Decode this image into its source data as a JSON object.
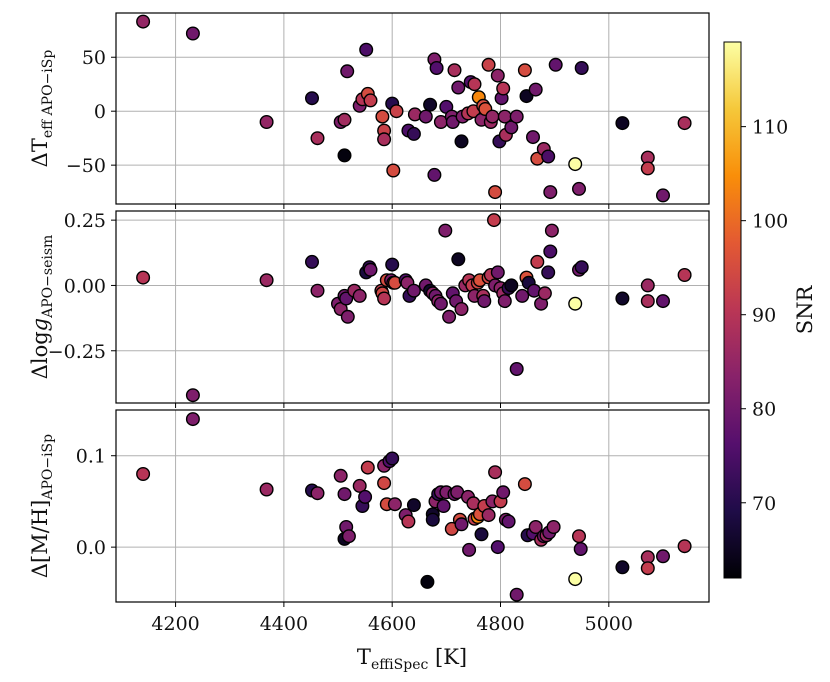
{
  "chart_data": {
    "type": "scatter",
    "xlabel": "T_effiSpec [K]",
    "xlim": [
      4090,
      5185
    ],
    "xticks": [
      4200,
      4400,
      4600,
      4800,
      5000
    ],
    "colorbar": {
      "label": "SNR",
      "range": [
        62,
        119
      ],
      "ticks": [
        70,
        80,
        90,
        100,
        110
      ],
      "colormap": "inferno"
    },
    "panels": [
      {
        "ylabel": "ΔT_eff APO−iSp",
        "ylim": [
          -86,
          91
        ],
        "yticks": [
          -50,
          0,
          50
        ],
        "points": [
          [
            4140,
            83,
            85
          ],
          [
            4232,
            72,
            80
          ],
          [
            4368,
            -10,
            85
          ],
          [
            4452,
            12,
            70
          ],
          [
            4462,
            -25,
            88
          ],
          [
            4505,
            -10,
            82
          ],
          [
            4512,
            -8,
            87
          ],
          [
            4512,
            -41,
            63
          ],
          [
            4517,
            37,
            80
          ],
          [
            4540,
            5,
            82
          ],
          [
            4545,
            11,
            90
          ],
          [
            4555,
            16,
            95
          ],
          [
            4552,
            57,
            75
          ],
          [
            4560,
            10,
            92
          ],
          [
            4582,
            -5,
            95
          ],
          [
            4585,
            -18,
            93
          ],
          [
            4585,
            -26,
            88
          ],
          [
            4600,
            7,
            70
          ],
          [
            4602,
            -55,
            95
          ],
          [
            4608,
            0,
            93
          ],
          [
            4630,
            -18,
            75
          ],
          [
            4640,
            -21,
            72
          ],
          [
            4642,
            -3,
            86
          ],
          [
            4662,
            -5,
            80
          ],
          [
            4670,
            6,
            66
          ],
          [
            4678,
            48,
            82
          ],
          [
            4678,
            -59,
            78
          ],
          [
            4682,
            40,
            76
          ],
          [
            4690,
            -10,
            84
          ],
          [
            4700,
            4,
            76
          ],
          [
            4710,
            -5,
            82
          ],
          [
            4712,
            -10,
            80
          ],
          [
            4715,
            38,
            88
          ],
          [
            4722,
            22,
            80
          ],
          [
            4728,
            -28,
            65
          ],
          [
            4730,
            -5,
            82
          ],
          [
            4740,
            -2,
            90
          ],
          [
            4745,
            27,
            76
          ],
          [
            4750,
            0,
            92
          ],
          [
            4752,
            25,
            90
          ],
          [
            4760,
            13,
            104
          ],
          [
            4765,
            -8,
            84
          ],
          [
            4768,
            5,
            95
          ],
          [
            4772,
            2,
            96
          ],
          [
            4778,
            43,
            93
          ],
          [
            4782,
            -10,
            86
          ],
          [
            4785,
            -5,
            85
          ],
          [
            4790,
            -75,
            95
          ],
          [
            4795,
            33,
            84
          ],
          [
            4798,
            -28,
            72
          ],
          [
            4802,
            12,
            78
          ],
          [
            4805,
            21,
            90
          ],
          [
            4808,
            -5,
            84
          ],
          [
            4810,
            -22,
            88
          ],
          [
            4820,
            -15,
            80
          ],
          [
            4830,
            -5,
            82
          ],
          [
            4845,
            38,
            95
          ],
          [
            4848,
            14,
            65
          ],
          [
            4865,
            20,
            80
          ],
          [
            4860,
            -24,
            80
          ],
          [
            4868,
            -44,
            95
          ],
          [
            4880,
            -35,
            86
          ],
          [
            4888,
            -42,
            75
          ],
          [
            4892,
            -75,
            82
          ],
          [
            4902,
            43,
            78
          ],
          [
            4938,
            -49,
            119
          ],
          [
            4945,
            -72,
            82
          ],
          [
            4950,
            40,
            72
          ],
          [
            5025,
            -11,
            65
          ],
          [
            5072,
            -43,
            88
          ],
          [
            5072,
            -53,
            92
          ],
          [
            5100,
            -78,
            80
          ],
          [
            5140,
            -11,
            88
          ]
        ]
      },
      {
        "ylabel": "Δlog g APO−seism",
        "ylim": [
          -0.45,
          0.285
        ],
        "yticks": [
          -0.25,
          0.0,
          0.25
        ],
        "points": [
          [
            4140,
            0.03,
            90
          ],
          [
            4232,
            -0.42,
            82
          ],
          [
            4368,
            0.02,
            86
          ],
          [
            4452,
            0.09,
            72
          ],
          [
            4462,
            -0.02,
            84
          ],
          [
            4500,
            -0.07,
            82
          ],
          [
            4505,
            -0.09,
            84
          ],
          [
            4512,
            -0.04,
            80
          ],
          [
            4515,
            -0.05,
            78
          ],
          [
            4518,
            -0.12,
            82
          ],
          [
            4530,
            -0.02,
            86
          ],
          [
            4540,
            -0.04,
            84
          ],
          [
            4552,
            0.05,
            68
          ],
          [
            4558,
            0.07,
            72
          ],
          [
            4560,
            0.06,
            80
          ],
          [
            4580,
            -0.02,
            92
          ],
          [
            4582,
            -0.03,
            94
          ],
          [
            4585,
            -0.05,
            90
          ],
          [
            4590,
            0.02,
            95
          ],
          [
            4598,
            0.02,
            82
          ],
          [
            4600,
            0.08,
            70
          ],
          [
            4602,
            0.01,
            92
          ],
          [
            4605,
            0.01,
            95
          ],
          [
            4625,
            0.02,
            76
          ],
          [
            4628,
            0.01,
            84
          ],
          [
            4632,
            -0.04,
            72
          ],
          [
            4640,
            -0.02,
            80
          ],
          [
            4662,
            0.0,
            80
          ],
          [
            4670,
            -0.02,
            66
          ],
          [
            4675,
            -0.03,
            84
          ],
          [
            4680,
            -0.04,
            80
          ],
          [
            4685,
            -0.06,
            84
          ],
          [
            4690,
            -0.07,
            80
          ],
          [
            4698,
            0.21,
            82
          ],
          [
            4705,
            -0.12,
            82
          ],
          [
            4712,
            -0.03,
            78
          ],
          [
            4718,
            -0.06,
            80
          ],
          [
            4722,
            0.1,
            65
          ],
          [
            4728,
            -0.09,
            84
          ],
          [
            4735,
            0.0,
            86
          ],
          [
            4742,
            0.02,
            90
          ],
          [
            4748,
            0.0,
            92
          ],
          [
            4752,
            -0.04,
            84
          ],
          [
            4758,
            0.01,
            94
          ],
          [
            4762,
            0.02,
            96
          ],
          [
            4768,
            -0.04,
            88
          ],
          [
            4770,
            -0.06,
            80
          ],
          [
            4778,
            0.03,
            94
          ],
          [
            4782,
            0.04,
            90
          ],
          [
            4788,
            0.25,
            92
          ],
          [
            4790,
            0.0,
            82
          ],
          [
            4795,
            0.05,
            80
          ],
          [
            4800,
            -0.01,
            84
          ],
          [
            4805,
            -0.03,
            86
          ],
          [
            4808,
            -0.06,
            82
          ],
          [
            4815,
            -0.01,
            72
          ],
          [
            4820,
            0.0,
            65
          ],
          [
            4830,
            -0.32,
            78
          ],
          [
            4840,
            -0.04,
            80
          ],
          [
            4848,
            0.03,
            96
          ],
          [
            4852,
            0.01,
            68
          ],
          [
            4862,
            -0.02,
            78
          ],
          [
            4868,
            0.09,
            92
          ],
          [
            4875,
            -0.07,
            82
          ],
          [
            4882,
            -0.03,
            86
          ],
          [
            4888,
            0.05,
            72
          ],
          [
            4892,
            0.13,
            75
          ],
          [
            4895,
            0.21,
            84
          ],
          [
            4938,
            -0.07,
            119
          ],
          [
            4945,
            0.06,
            80
          ],
          [
            4950,
            0.07,
            72
          ],
          [
            5025,
            -0.05,
            66
          ],
          [
            5072,
            -0.06,
            88
          ],
          [
            5072,
            0.0,
            86
          ],
          [
            5100,
            -0.06,
            78
          ],
          [
            5140,
            0.04,
            90
          ]
        ]
      },
      {
        "ylabel": "Δ[M/H] APO−iSp",
        "ylim": [
          -0.06,
          0.15
        ],
        "yticks": [
          0.0,
          0.1
        ],
        "points": [
          [
            4140,
            0.08,
            90
          ],
          [
            4232,
            0.14,
            82
          ],
          [
            4368,
            0.063,
            86
          ],
          [
            4452,
            0.062,
            70
          ],
          [
            4462,
            0.059,
            84
          ],
          [
            4505,
            0.078,
            84
          ],
          [
            4512,
            0.058,
            80
          ],
          [
            4512,
            0.009,
            65
          ],
          [
            4515,
            0.022,
            80
          ],
          [
            4520,
            0.012,
            82
          ],
          [
            4540,
            0.067,
            86
          ],
          [
            4545,
            0.045,
            72
          ],
          [
            4550,
            0.055,
            76
          ],
          [
            4555,
            0.087,
            92
          ],
          [
            4585,
            0.089,
            84
          ],
          [
            4585,
            0.07,
            94
          ],
          [
            4590,
            0.047,
            95
          ],
          [
            4595,
            0.094,
            76
          ],
          [
            4600,
            0.097,
            72
          ],
          [
            4605,
            0.047,
            84
          ],
          [
            4625,
            0.035,
            82
          ],
          [
            4630,
            0.028,
            90
          ],
          [
            4640,
            0.046,
            66
          ],
          [
            4665,
            -0.038,
            63
          ],
          [
            4675,
            0.036,
            66
          ],
          [
            4675,
            0.03,
            68
          ],
          [
            4680,
            0.05,
            84
          ],
          [
            4685,
            0.058,
            72
          ],
          [
            4690,
            0.06,
            80
          ],
          [
            4695,
            0.045,
            78
          ],
          [
            4700,
            0.06,
            82
          ],
          [
            4710,
            0.02,
            94
          ],
          [
            4715,
            0.058,
            80
          ],
          [
            4720,
            0.06,
            82
          ],
          [
            4725,
            0.03,
            95
          ],
          [
            4728,
            0.025,
            80
          ],
          [
            4740,
            0.055,
            84
          ],
          [
            4742,
            -0.003,
            80
          ],
          [
            4750,
            0.048,
            88
          ],
          [
            4752,
            0.031,
            92
          ],
          [
            4758,
            0.033,
            104
          ],
          [
            4762,
            0.036,
            96
          ],
          [
            4765,
            0.014,
            68
          ],
          [
            4770,
            0.045,
            92
          ],
          [
            4778,
            0.035,
            86
          ],
          [
            4785,
            0.05,
            84
          ],
          [
            4790,
            0.082,
            88
          ],
          [
            4795,
            0.0,
            76
          ],
          [
            4800,
            0.05,
            92
          ],
          [
            4805,
            0.06,
            80
          ],
          [
            4810,
            0.03,
            82
          ],
          [
            4815,
            0.028,
            78
          ],
          [
            4830,
            -0.052,
            80
          ],
          [
            4845,
            0.069,
            95
          ],
          [
            4850,
            0.013,
            70
          ],
          [
            4860,
            0.015,
            76
          ],
          [
            4865,
            0.022,
            84
          ],
          [
            4875,
            0.008,
            88
          ],
          [
            4880,
            0.012,
            80
          ],
          [
            4885,
            0.013,
            86
          ],
          [
            4890,
            0.016,
            80
          ],
          [
            4898,
            0.022,
            84
          ],
          [
            4938,
            -0.035,
            119
          ],
          [
            4945,
            0.012,
            90
          ],
          [
            4948,
            -0.002,
            78
          ],
          [
            5025,
            -0.022,
            66
          ],
          [
            5072,
            -0.011,
            88
          ],
          [
            5072,
            -0.023,
            92
          ],
          [
            5100,
            -0.01,
            80
          ],
          [
            5140,
            0.001,
            90
          ]
        ]
      }
    ]
  }
}
